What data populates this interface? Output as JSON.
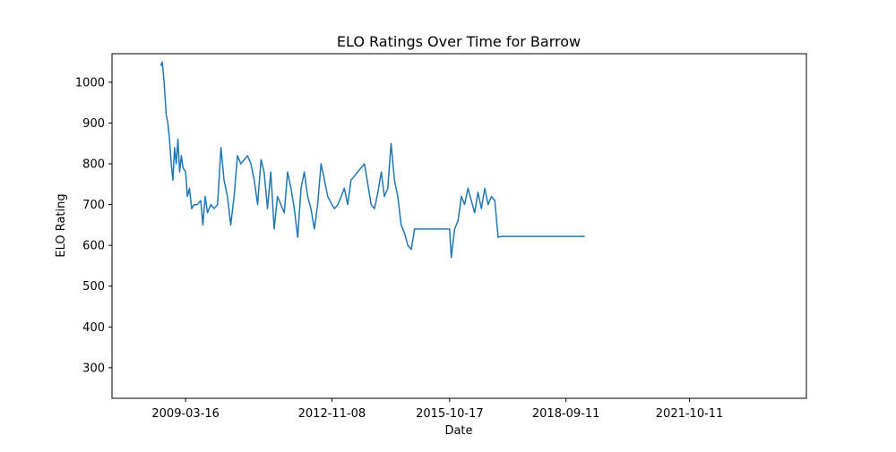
{
  "chart_data": {
    "type": "line",
    "title": "ELO Ratings Over Time for Barrow",
    "xlabel": "Date",
    "ylabel": "ELO Rating",
    "x_tick_labels": [
      "2009-03-16",
      "2012-11-08",
      "2015-10-17",
      "2018-09-11",
      "2021-10-11"
    ],
    "y_ticks": [
      300,
      400,
      500,
      600,
      700,
      800,
      900,
      1000
    ],
    "ylim": [
      225,
      1070
    ],
    "xlim": [
      "2007-05-15",
      "2024-09-10"
    ],
    "grid": false,
    "legend": "none",
    "series": [
      {
        "color": "#1f77b4",
        "points": [
          [
            "2008-08-01",
            1040
          ],
          [
            "2008-08-15",
            1050
          ],
          [
            "2008-09-01",
            1000
          ],
          [
            "2008-09-20",
            920
          ],
          [
            "2008-10-05",
            900
          ],
          [
            "2008-10-20",
            860
          ],
          [
            "2008-11-05",
            800
          ],
          [
            "2008-11-20",
            760
          ],
          [
            "2008-12-05",
            840
          ],
          [
            "2008-12-20",
            800
          ],
          [
            "2009-01-05",
            860
          ],
          [
            "2009-01-20",
            780
          ],
          [
            "2009-02-05",
            820
          ],
          [
            "2009-02-20",
            790
          ],
          [
            "2009-03-16",
            780
          ],
          [
            "2009-04-01",
            720
          ],
          [
            "2009-04-20",
            740
          ],
          [
            "2009-05-10",
            690
          ],
          [
            "2009-06-01",
            700
          ],
          [
            "2009-07-01",
            700
          ],
          [
            "2009-08-01",
            710
          ],
          [
            "2009-08-20",
            650
          ],
          [
            "2009-09-10",
            720
          ],
          [
            "2009-10-01",
            680
          ],
          [
            "2009-11-01",
            700
          ],
          [
            "2009-12-01",
            690
          ],
          [
            "2010-01-01",
            700
          ],
          [
            "2010-02-01",
            840
          ],
          [
            "2010-03-01",
            760
          ],
          [
            "2010-04-01",
            720
          ],
          [
            "2010-05-01",
            650
          ],
          [
            "2010-06-01",
            720
          ],
          [
            "2010-07-01",
            820
          ],
          [
            "2010-08-01",
            800
          ],
          [
            "2010-09-01",
            810
          ],
          [
            "2010-10-01",
            820
          ],
          [
            "2010-11-01",
            800
          ],
          [
            "2010-12-01",
            760
          ],
          [
            "2011-01-01",
            700
          ],
          [
            "2011-02-01",
            810
          ],
          [
            "2011-03-01",
            780
          ],
          [
            "2011-04-01",
            690
          ],
          [
            "2011-05-01",
            780
          ],
          [
            "2011-06-01",
            640
          ],
          [
            "2011-07-01",
            720
          ],
          [
            "2011-08-01",
            700
          ],
          [
            "2011-09-01",
            680
          ],
          [
            "2011-10-01",
            780
          ],
          [
            "2011-11-01",
            740
          ],
          [
            "2011-12-01",
            690
          ],
          [
            "2012-01-01",
            620
          ],
          [
            "2012-02-01",
            740
          ],
          [
            "2012-03-01",
            780
          ],
          [
            "2012-04-01",
            720
          ],
          [
            "2012-05-01",
            690
          ],
          [
            "2012-06-01",
            640
          ],
          [
            "2012-07-01",
            700
          ],
          [
            "2012-08-01",
            800
          ],
          [
            "2012-09-01",
            760
          ],
          [
            "2012-10-01",
            720
          ],
          [
            "2012-11-08",
            700
          ],
          [
            "2012-12-01",
            690
          ],
          [
            "2013-01-01",
            700
          ],
          [
            "2013-02-01",
            720
          ],
          [
            "2013-03-01",
            740
          ],
          [
            "2013-04-01",
            700
          ],
          [
            "2013-05-01",
            760
          ],
          [
            "2013-06-01",
            770
          ],
          [
            "2013-07-01",
            780
          ],
          [
            "2013-08-01",
            790
          ],
          [
            "2013-09-01",
            800
          ],
          [
            "2013-10-01",
            750
          ],
          [
            "2013-11-01",
            700
          ],
          [
            "2013-12-01",
            690
          ],
          [
            "2014-01-01",
            730
          ],
          [
            "2014-02-01",
            780
          ],
          [
            "2014-03-01",
            720
          ],
          [
            "2014-04-01",
            740
          ],
          [
            "2014-05-01",
            850
          ],
          [
            "2014-06-01",
            760
          ],
          [
            "2014-07-01",
            720
          ],
          [
            "2014-08-01",
            650
          ],
          [
            "2014-09-01",
            630
          ],
          [
            "2014-10-01",
            600
          ],
          [
            "2014-11-01",
            590
          ],
          [
            "2014-12-01",
            640
          ],
          [
            "2015-01-01",
            640
          ],
          [
            "2015-02-01",
            640
          ],
          [
            "2015-03-01",
            640
          ],
          [
            "2015-04-01",
            640
          ],
          [
            "2015-05-01",
            640
          ],
          [
            "2015-06-01",
            640
          ],
          [
            "2015-07-01",
            640
          ],
          [
            "2015-08-01",
            640
          ],
          [
            "2015-09-01",
            640
          ],
          [
            "2015-10-17",
            640
          ],
          [
            "2015-11-01",
            570
          ],
          [
            "2015-12-01",
            640
          ],
          [
            "2016-01-01",
            660
          ],
          [
            "2016-02-01",
            720
          ],
          [
            "2016-03-01",
            700
          ],
          [
            "2016-04-01",
            740
          ],
          [
            "2016-05-01",
            710
          ],
          [
            "2016-06-01",
            680
          ],
          [
            "2016-07-01",
            730
          ],
          [
            "2016-08-01",
            690
          ],
          [
            "2016-09-01",
            740
          ],
          [
            "2016-10-01",
            700
          ],
          [
            "2016-11-01",
            720
          ],
          [
            "2016-12-01",
            710
          ],
          [
            "2017-01-01",
            620
          ],
          [
            "2017-02-01",
            622
          ],
          [
            "2017-03-01",
            622
          ],
          [
            "2017-04-01",
            622
          ],
          [
            "2017-05-01",
            622
          ],
          [
            "2017-06-01",
            622
          ],
          [
            "2017-07-01",
            622
          ],
          [
            "2017-08-01",
            622
          ],
          [
            "2017-09-01",
            622
          ],
          [
            "2017-10-01",
            622
          ],
          [
            "2017-11-01",
            622
          ],
          [
            "2017-12-01",
            622
          ],
          [
            "2018-01-01",
            622
          ],
          [
            "2018-02-01",
            622
          ],
          [
            "2018-03-01",
            622
          ],
          [
            "2018-04-01",
            622
          ],
          [
            "2018-05-01",
            622
          ],
          [
            "2018-06-01",
            622
          ],
          [
            "2018-07-01",
            622
          ],
          [
            "2018-08-01",
            622
          ],
          [
            "2018-09-11",
            622
          ],
          [
            "2018-10-01",
            622
          ],
          [
            "2018-11-01",
            622
          ],
          [
            "2018-12-01",
            622
          ],
          [
            "2019-01-01",
            622
          ],
          [
            "2019-02-01",
            622
          ],
          [
            "2019-03-01",
            622
          ]
        ]
      }
    ]
  }
}
